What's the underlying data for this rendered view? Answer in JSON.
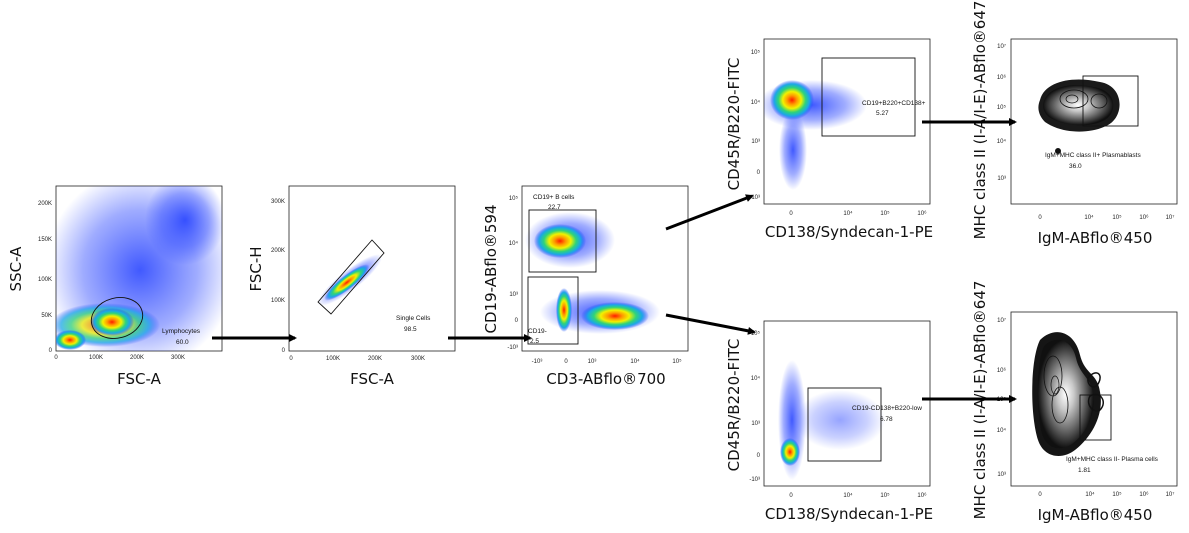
{
  "chart_data": [
    {
      "id": "p1",
      "type": "scatter",
      "style": "density",
      "xlabel": "FSC-A",
      "ylabel": "SSC-A",
      "xticks": [
        "0",
        "100K",
        "200K",
        "300K"
      ],
      "yticks": [
        "0",
        "50K",
        "100K",
        "150K",
        "200K"
      ],
      "gate": {
        "name": "Lymphocytes",
        "value": "60.0",
        "shape": "ellipse"
      }
    },
    {
      "id": "p2",
      "type": "scatter",
      "style": "density",
      "xlabel": "FSC-A",
      "ylabel": "FSC-H",
      "xticks": [
        "0",
        "100K",
        "200K",
        "300K"
      ],
      "yticks": [
        "0",
        "100K",
        "200K",
        "300K"
      ],
      "gate": {
        "name": "Single Cells",
        "value": "98.5",
        "shape": "polygon"
      }
    },
    {
      "id": "p3",
      "type": "scatter",
      "style": "density",
      "xlabel": "CD3-ABflo®700",
      "ylabel": "CD19-ABflo®594",
      "xticks": [
        "-10³",
        "0",
        "10³",
        "10⁴",
        "10⁵"
      ],
      "yticks": [
        "-10³",
        "0",
        "10³",
        "10⁴",
        "10⁵"
      ],
      "gates": [
        {
          "name": "CD19+ B cells",
          "value": "22.7"
        },
        {
          "name": "CD19-",
          "value": "2.5"
        }
      ]
    },
    {
      "id": "p4",
      "type": "scatter",
      "style": "density",
      "xlabel": "CD138/Syndecan-1-PE",
      "ylabel": "CD45R/B220-FITC",
      "xticks": [
        "0",
        "10⁴",
        "10⁵",
        "10⁶"
      ],
      "yticks": [
        "-10³",
        "0",
        "10³",
        "10⁴",
        "10⁵"
      ],
      "gate": {
        "name": "CD19+B220+CD138+",
        "value": "5.27"
      }
    },
    {
      "id": "p5",
      "type": "contour",
      "xlabel": "IgM-ABflo®450",
      "ylabel": "MHC class II (I-A/I-E)-ABflo®647",
      "xticks": [
        "0",
        "10⁴",
        "10⁵",
        "10⁶",
        "10⁷"
      ],
      "yticks": [
        "10³",
        "10⁴",
        "10⁵",
        "10⁶",
        "10⁷"
      ],
      "gate": {
        "name": "IgM+MHC class II+ Plasmablasts",
        "value": "36.0"
      }
    },
    {
      "id": "p6",
      "type": "scatter",
      "style": "density",
      "xlabel": "CD138/Syndecan-1-PE",
      "ylabel": "CD45R/B220-FITC",
      "xticks": [
        "0",
        "10⁴",
        "10⁵",
        "10⁶"
      ],
      "yticks": [
        "-10³",
        "0",
        "10³",
        "10⁴",
        "10⁵"
      ],
      "gate": {
        "name": "CD19-CD138+B220-low",
        "value": "6.78"
      }
    },
    {
      "id": "p7",
      "type": "contour",
      "xlabel": "IgM-ABflo®450",
      "ylabel": "MHC class II (I-A/I-E)-ABflo®647",
      "xticks": [
        "0",
        "10⁴",
        "10⁵",
        "10⁶",
        "10⁷"
      ],
      "yticks": [
        "10³",
        "10⁴",
        "10⁵",
        "10⁶",
        "10⁷"
      ],
      "gate": {
        "name": "IgM+MHC class II- Plasma cells",
        "value": "1.81"
      }
    }
  ],
  "colors": {
    "density_low": "#1f3cff",
    "density_mid": "#19c8a8",
    "density_high": "#ff2000",
    "arrow": "#000000",
    "contour_dark": "#111111"
  }
}
